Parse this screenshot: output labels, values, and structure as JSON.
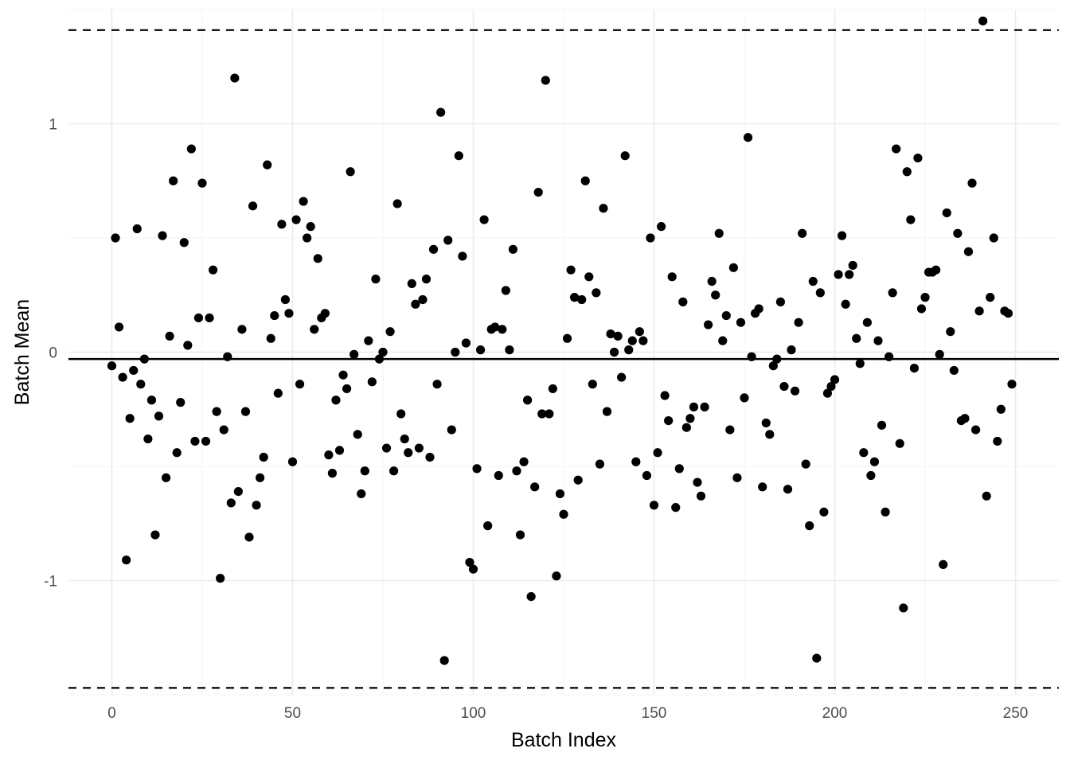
{
  "chart_data": {
    "type": "scatter",
    "title": "",
    "xlabel": "Batch Index",
    "ylabel": "Batch Mean",
    "xlim": [
      -12,
      262
    ],
    "ylim": [
      -1.5,
      1.5
    ],
    "x_ticks": [
      0,
      50,
      100,
      150,
      200,
      250
    ],
    "y_ticks": [
      -1,
      0,
      1
    ],
    "x_tick_labels": [
      "0",
      "50",
      "100",
      "150",
      "200",
      "250"
    ],
    "y_tick_labels": [
      "-1",
      "0",
      "1"
    ],
    "grid": true,
    "legend": "none",
    "center_line": -0.03,
    "upper_limit": 1.41,
    "lower_limit": -1.47,
    "series": [
      {
        "point_color": "#000000",
        "points": [
          [
            0,
            -0.06
          ],
          [
            1,
            0.5
          ],
          [
            2,
            0.11
          ],
          [
            3,
            -0.11
          ],
          [
            4,
            -0.91
          ],
          [
            5,
            -0.29
          ],
          [
            6,
            -0.08
          ],
          [
            7,
            0.54
          ],
          [
            8,
            -0.14
          ],
          [
            9,
            -0.03
          ],
          [
            10,
            -0.38
          ],
          [
            11,
            -0.21
          ],
          [
            12,
            -0.8
          ],
          [
            13,
            -0.28
          ],
          [
            14,
            0.51
          ],
          [
            15,
            -0.55
          ],
          [
            16,
            0.07
          ],
          [
            17,
            0.75
          ],
          [
            18,
            -0.44
          ],
          [
            19,
            -0.22
          ],
          [
            20,
            0.48
          ],
          [
            21,
            0.03
          ],
          [
            22,
            0.89
          ],
          [
            23,
            -0.39
          ],
          [
            24,
            0.15
          ],
          [
            25,
            0.74
          ],
          [
            26,
            -0.39
          ],
          [
            27,
            0.15
          ],
          [
            28,
            0.36
          ],
          [
            29,
            -0.26
          ],
          [
            30,
            -0.99
          ],
          [
            31,
            -0.34
          ],
          [
            32,
            -0.02
          ],
          [
            33,
            -0.66
          ],
          [
            34,
            1.2
          ],
          [
            35,
            -0.61
          ],
          [
            36,
            0.1
          ],
          [
            37,
            -0.26
          ],
          [
            38,
            -0.81
          ],
          [
            39,
            0.64
          ],
          [
            40,
            -0.67
          ],
          [
            41,
            -0.55
          ],
          [
            42,
            -0.46
          ],
          [
            43,
            0.82
          ],
          [
            44,
            0.06
          ],
          [
            45,
            0.16
          ],
          [
            46,
            -0.18
          ],
          [
            47,
            0.56
          ],
          [
            48,
            0.23
          ],
          [
            49,
            0.17
          ],
          [
            50,
            -0.48
          ],
          [
            51,
            0.58
          ],
          [
            52,
            -0.14
          ],
          [
            53,
            0.66
          ],
          [
            54,
            0.5
          ],
          [
            55,
            0.55
          ],
          [
            56,
            0.1
          ],
          [
            57,
            0.41
          ],
          [
            58,
            0.15
          ],
          [
            59,
            0.17
          ],
          [
            60,
            -0.45
          ],
          [
            61,
            -0.53
          ],
          [
            62,
            -0.21
          ],
          [
            63,
            -0.43
          ],
          [
            64,
            -0.1
          ],
          [
            65,
            -0.16
          ],
          [
            66,
            0.79
          ],
          [
            67,
            -0.01
          ],
          [
            68,
            -0.36
          ],
          [
            69,
            -0.62
          ],
          [
            70,
            -0.52
          ],
          [
            71,
            0.05
          ],
          [
            72,
            -0.13
          ],
          [
            73,
            0.32
          ],
          [
            74,
            -0.03
          ],
          [
            75,
            0.0
          ],
          [
            76,
            -0.42
          ],
          [
            77,
            0.09
          ],
          [
            78,
            -0.52
          ],
          [
            79,
            0.65
          ],
          [
            80,
            -0.27
          ],
          [
            81,
            -0.38
          ],
          [
            82,
            -0.44
          ],
          [
            83,
            0.3
          ],
          [
            84,
            0.21
          ],
          [
            85,
            -0.42
          ],
          [
            86,
            0.23
          ],
          [
            87,
            0.32
          ],
          [
            88,
            -0.46
          ],
          [
            89,
            0.45
          ],
          [
            90,
            -0.14
          ],
          [
            91,
            1.05
          ],
          [
            92,
            -1.35
          ],
          [
            93,
            0.49
          ],
          [
            94,
            -0.34
          ],
          [
            95,
            0.0
          ],
          [
            96,
            0.86
          ],
          [
            97,
            0.42
          ],
          [
            98,
            0.04
          ],
          [
            99,
            -0.92
          ],
          [
            100,
            -0.95
          ],
          [
            101,
            -0.51
          ],
          [
            102,
            0.01
          ],
          [
            103,
            0.58
          ],
          [
            104,
            -0.76
          ],
          [
            105,
            0.1
          ],
          [
            106,
            0.11
          ],
          [
            107,
            -0.54
          ],
          [
            108,
            0.1
          ],
          [
            109,
            0.27
          ],
          [
            110,
            0.01
          ],
          [
            111,
            0.45
          ],
          [
            112,
            -0.52
          ],
          [
            113,
            -0.8
          ],
          [
            114,
            -0.48
          ],
          [
            115,
            -0.21
          ],
          [
            116,
            -1.07
          ],
          [
            117,
            -0.59
          ],
          [
            118,
            0.7
          ],
          [
            119,
            -0.27
          ],
          [
            120,
            1.19
          ],
          [
            121,
            -0.27
          ],
          [
            122,
            -0.16
          ],
          [
            123,
            -0.98
          ],
          [
            124,
            -0.62
          ],
          [
            125,
            -0.71
          ],
          [
            126,
            0.06
          ],
          [
            127,
            0.36
          ],
          [
            128,
            0.24
          ],
          [
            129,
            -0.56
          ],
          [
            130,
            0.23
          ],
          [
            131,
            0.75
          ],
          [
            132,
            0.33
          ],
          [
            133,
            -0.14
          ],
          [
            134,
            0.26
          ],
          [
            135,
            -0.49
          ],
          [
            136,
            0.63
          ],
          [
            137,
            -0.26
          ],
          [
            138,
            0.08
          ],
          [
            139,
            0.0
          ],
          [
            140,
            0.07
          ],
          [
            141,
            -0.11
          ],
          [
            142,
            0.86
          ],
          [
            143,
            0.01
          ],
          [
            144,
            0.05
          ],
          [
            145,
            -0.48
          ],
          [
            146,
            0.09
          ],
          [
            147,
            0.05
          ],
          [
            148,
            -0.54
          ],
          [
            149,
            0.5
          ],
          [
            150,
            -0.67
          ],
          [
            151,
            -0.44
          ],
          [
            152,
            0.55
          ],
          [
            153,
            -0.19
          ],
          [
            154,
            -0.3
          ],
          [
            155,
            0.33
          ],
          [
            156,
            -0.68
          ],
          [
            157,
            -0.51
          ],
          [
            158,
            0.22
          ],
          [
            159,
            -0.33
          ],
          [
            160,
            -0.29
          ],
          [
            161,
            -0.24
          ],
          [
            162,
            -0.57
          ],
          [
            163,
            -0.63
          ],
          [
            164,
            -0.24
          ],
          [
            165,
            0.12
          ],
          [
            166,
            0.31
          ],
          [
            167,
            0.25
          ],
          [
            168,
            0.52
          ],
          [
            169,
            0.05
          ],
          [
            170,
            0.16
          ],
          [
            171,
            -0.34
          ],
          [
            172,
            0.37
          ],
          [
            173,
            -0.55
          ],
          [
            174,
            0.13
          ],
          [
            175,
            -0.2
          ],
          [
            176,
            0.94
          ],
          [
            177,
            -0.02
          ],
          [
            178,
            0.17
          ],
          [
            179,
            0.19
          ],
          [
            180,
            -0.59
          ],
          [
            181,
            -0.31
          ],
          [
            182,
            -0.36
          ],
          [
            183,
            -0.06
          ],
          [
            184,
            -0.03
          ],
          [
            185,
            0.22
          ],
          [
            186,
            -0.15
          ],
          [
            187,
            -0.6
          ],
          [
            188,
            0.01
          ],
          [
            189,
            -0.17
          ],
          [
            190,
            0.13
          ],
          [
            191,
            0.52
          ],
          [
            192,
            -0.49
          ],
          [
            193,
            -0.76
          ],
          [
            194,
            0.31
          ],
          [
            195,
            -1.34
          ],
          [
            196,
            0.26
          ],
          [
            197,
            -0.7
          ],
          [
            198,
            -0.18
          ],
          [
            199,
            -0.15
          ],
          [
            200,
            -0.12
          ],
          [
            201,
            0.34
          ],
          [
            202,
            0.51
          ],
          [
            203,
            0.21
          ],
          [
            204,
            0.34
          ],
          [
            205,
            0.38
          ],
          [
            206,
            0.06
          ],
          [
            207,
            -0.05
          ],
          [
            208,
            -0.44
          ],
          [
            209,
            0.13
          ],
          [
            210,
            -0.54
          ],
          [
            211,
            -0.48
          ],
          [
            212,
            0.05
          ],
          [
            213,
            -0.32
          ],
          [
            214,
            -0.7
          ],
          [
            215,
            -0.02
          ],
          [
            216,
            0.26
          ],
          [
            217,
            0.89
          ],
          [
            218,
            -0.4
          ],
          [
            219,
            -1.12
          ],
          [
            220,
            0.79
          ],
          [
            221,
            0.58
          ],
          [
            222,
            -0.07
          ],
          [
            223,
            0.85
          ],
          [
            224,
            0.19
          ],
          [
            225,
            0.24
          ],
          [
            226,
            0.35
          ],
          [
            227,
            0.35
          ],
          [
            228,
            0.36
          ],
          [
            229,
            -0.01
          ],
          [
            230,
            -0.93
          ],
          [
            231,
            0.61
          ],
          [
            232,
            0.09
          ],
          [
            233,
            -0.08
          ],
          [
            234,
            0.52
          ],
          [
            235,
            -0.3
          ],
          [
            236,
            -0.29
          ],
          [
            237,
            0.44
          ],
          [
            238,
            0.74
          ],
          [
            239,
            -0.34
          ],
          [
            240,
            0.18
          ],
          [
            241,
            1.45
          ],
          [
            242,
            -0.63
          ],
          [
            243,
            0.24
          ],
          [
            244,
            0.5
          ],
          [
            245,
            -0.39
          ],
          [
            246,
            -0.25
          ],
          [
            247,
            0.18
          ],
          [
            248,
            0.17
          ],
          [
            249,
            -0.14
          ]
        ]
      }
    ]
  }
}
